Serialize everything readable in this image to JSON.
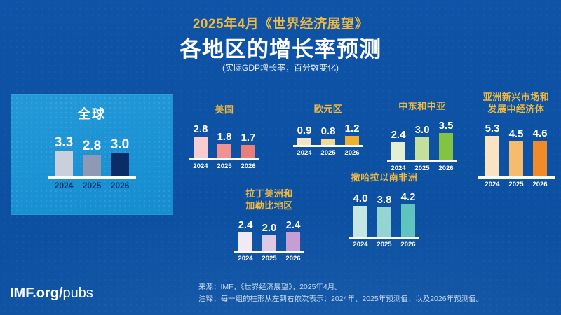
{
  "header": {
    "kicker": "2025年4月《世界经济展望》",
    "title": "各地区的增长率预测",
    "subtitle": "(实际GDP增长率，百分数变化)"
  },
  "colors": {
    "background": "#0D51A4",
    "global_panel": "#1693D6",
    "accent_gold": "#F0B93F",
    "baseline": "#FFFFFF",
    "value_label": "#FFFFFF",
    "global_year_label": "#0A2D68",
    "region_year_label": "#FFFFFF"
  },
  "chart_data": [
    {
      "id": "global",
      "type": "bar",
      "title": "全球",
      "categories": [
        "2024",
        "2025",
        "2026"
      ],
      "values": [
        3.3,
        2.8,
        3.0
      ],
      "bar_colors": [
        "#C9CFDB",
        "#8E9AB5",
        "#0A2D68"
      ]
    },
    {
      "id": "us",
      "type": "bar",
      "title": "美国",
      "categories": [
        "2024",
        "2025",
        "2026"
      ],
      "values": [
        2.8,
        1.8,
        1.7
      ],
      "bar_colors": [
        "#F8CDD1",
        "#F09390",
        "#EA7E78"
      ]
    },
    {
      "id": "euro",
      "type": "bar",
      "title": "欧元区",
      "categories": [
        "2024",
        "2025",
        "2026"
      ],
      "values": [
        0.9,
        0.8,
        1.2
      ],
      "bar_colors": [
        "#F3E5C4",
        "#F4D992",
        "#EFAF30"
      ]
    },
    {
      "id": "meca",
      "type": "bar",
      "title": "中东和中亚",
      "categories": [
        "2024",
        "2025",
        "2026"
      ],
      "values": [
        2.4,
        3.0,
        3.5
      ],
      "bar_colors": [
        "#E2EFD2",
        "#C3DF9B",
        "#82C341"
      ]
    },
    {
      "id": "asia",
      "type": "bar",
      "title": "亚洲新兴市场和\n发展中经济体",
      "categories": [
        "2024",
        "2025",
        "2026"
      ],
      "values": [
        5.3,
        4.5,
        4.6
      ],
      "bar_colors": [
        "#FAE3C3",
        "#F6BB6C",
        "#F18A28"
      ]
    },
    {
      "id": "lac",
      "type": "bar",
      "title": "拉丁美洲和\n加勒比地区",
      "categories": [
        "2024",
        "2025",
        "2026"
      ],
      "values": [
        2.4,
        2.0,
        2.4
      ],
      "bar_colors": [
        "#F1EAF4",
        "#DCC9E4",
        "#C79ED4"
      ]
    },
    {
      "id": "ssa",
      "type": "bar",
      "title": "撒哈拉以南非洲",
      "categories": [
        "2024",
        "2025",
        "2026"
      ],
      "values": [
        4.0,
        3.8,
        4.2
      ],
      "bar_colors": [
        "#C4E7E4",
        "#93D5D2",
        "#5FC4C0"
      ]
    }
  ],
  "footer": {
    "source": "来源：IMF，《世界经济展望》，2025年4月。",
    "note": "注释：每一组的柱形从左到右依次表示：2024年、2025年预测值，以及2026年预测值。"
  },
  "logo": {
    "bold": "IMF.org/",
    "light": "pubs"
  }
}
